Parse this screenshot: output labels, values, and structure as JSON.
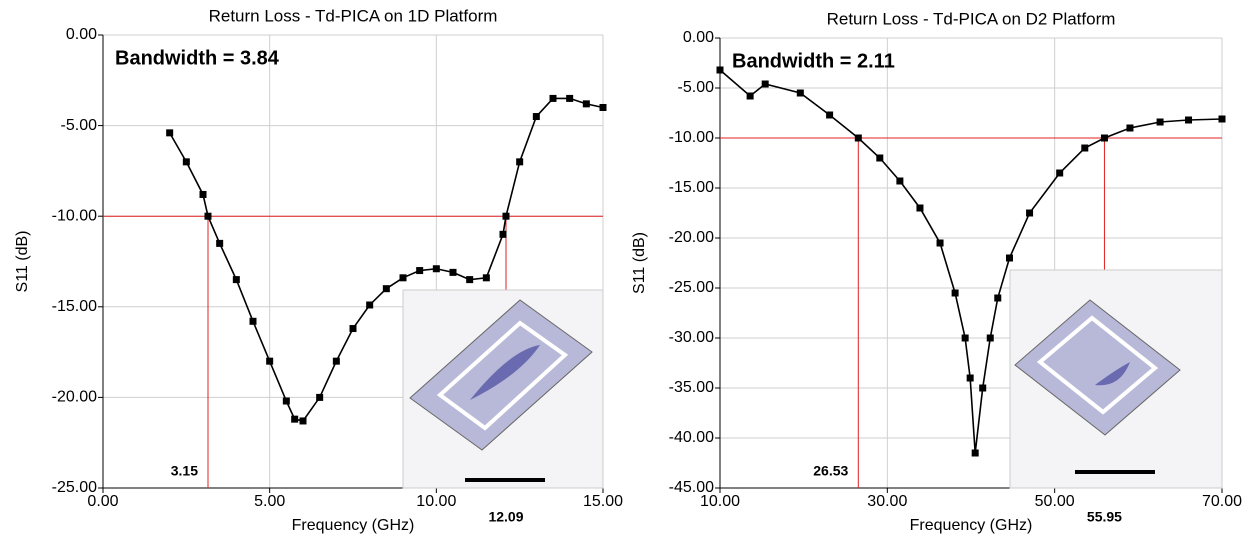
{
  "chart_data": [
    {
      "type": "line",
      "title": "Return Loss - Td-PICA on 1D Platform",
      "x_label": "Frequency (GHz)",
      "y_label": "S11 (dB)",
      "annotation": "Bandwidth = 3.84",
      "color": "#000000",
      "grid": true,
      "x": [
        2,
        2.5,
        3,
        3.15,
        3.5,
        4,
        4.5,
        5,
        5.5,
        5.75,
        6,
        6.5,
        7,
        7.5,
        8,
        8.5,
        9,
        9.5,
        10,
        10.5,
        11,
        11.5,
        12,
        12.09,
        12.5,
        13,
        13.5,
        14,
        14.5,
        15
      ],
      "values": [
        -5.4,
        -7.0,
        -8.8,
        -10.0,
        -11.5,
        -13.5,
        -15.8,
        -18.0,
        -20.2,
        -21.2,
        -21.3,
        -20.0,
        -18.0,
        -16.2,
        -14.9,
        -14.0,
        -13.4,
        -13.0,
        -12.9,
        -13.1,
        -13.5,
        -13.4,
        -11.0,
        -10.0,
        -7.0,
        -4.5,
        -3.5,
        -3.5,
        -3.8,
        -4.0
      ],
      "xlim": [
        0,
        15
      ],
      "ylim": [
        -25,
        0
      ],
      "xticks": [
        {
          "value": 0,
          "label": "0.00"
        },
        {
          "value": 5,
          "label": "5.00"
        },
        {
          "value": 10,
          "label": "10.00"
        },
        {
          "value": 15,
          "label": "15.00"
        }
      ],
      "yticks": [
        {
          "value": 0,
          "label": "0.00"
        },
        {
          "value": -5,
          "label": "-5.00"
        },
        {
          "value": -10,
          "label": "-10.00"
        },
        {
          "value": -15,
          "label": "-15.00"
        },
        {
          "value": -20,
          "label": "-20.00"
        },
        {
          "value": -25,
          "label": "-25.00"
        }
      ],
      "hline": -10,
      "ref_color": "#e02020",
      "vlines": [
        {
          "value": 3.15,
          "label": "3.15"
        },
        {
          "value": 12.09,
          "label": "12.09"
        }
      ]
    },
    {
      "type": "line",
      "title": "Return Loss - Td-PICA on D2 Platform",
      "x_label": "Frequency (GHz)",
      "y_label": "S11 (dB)",
      "annotation": "Bandwidth = 2.11",
      "color": "#000000",
      "grid": true,
      "x": [
        10,
        13.6,
        15.4,
        19.6,
        23.1,
        26.53,
        29.1,
        31.5,
        33.9,
        36.3,
        38.1,
        39.3,
        39.9,
        40.5,
        41.4,
        42.3,
        43.2,
        44.6,
        47,
        50.6,
        53.6,
        55.95,
        59,
        62.6,
        66,
        70
      ],
      "values": [
        -3.2,
        -5.8,
        -4.6,
        -5.5,
        -7.7,
        -10.0,
        -12.0,
        -14.3,
        -17.0,
        -20.5,
        -25.5,
        -30.0,
        -34.0,
        -41.5,
        -35.0,
        -30.0,
        -26.0,
        -22.0,
        -17.5,
        -13.5,
        -11.0,
        -10.0,
        -9.0,
        -8.4,
        -8.2,
        -8.1
      ],
      "xlim": [
        10,
        70
      ],
      "ylim": [
        -45,
        0
      ],
      "xticks": [
        {
          "value": 10,
          "label": "10.00"
        },
        {
          "value": 30,
          "label": "30.00"
        },
        {
          "value": 50,
          "label": "50.00"
        },
        {
          "value": 70,
          "label": "70.00"
        }
      ],
      "yticks": [
        {
          "value": 0,
          "label": "0.00"
        },
        {
          "value": -5,
          "label": "-5.00"
        },
        {
          "value": -10,
          "label": "-10.00"
        },
        {
          "value": -15,
          "label": "-15.00"
        },
        {
          "value": -20,
          "label": "-20.00"
        },
        {
          "value": -25,
          "label": "-25.00"
        },
        {
          "value": -30,
          "label": "-30.00"
        },
        {
          "value": -35,
          "label": "-35.00"
        },
        {
          "value": -40,
          "label": "-40.00"
        },
        {
          "value": -45,
          "label": "-45.00"
        }
      ],
      "hline": -10,
      "ref_color": "#e02020",
      "vlines": [
        {
          "value": 26.53,
          "label": "26.53"
        },
        {
          "value": 55.95,
          "label": "55.95"
        }
      ]
    }
  ]
}
